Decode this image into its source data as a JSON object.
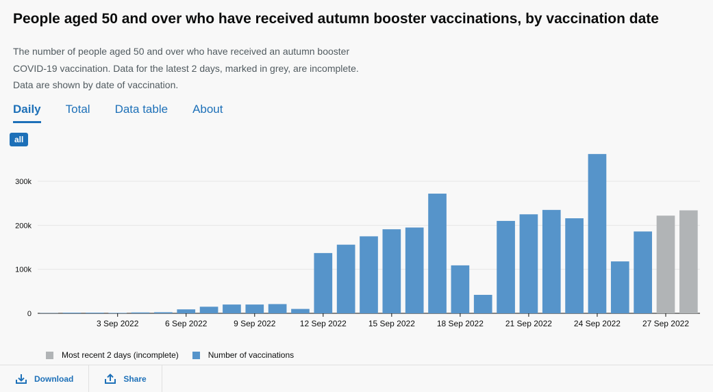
{
  "title": "People aged 50 and over who have received autumn booster vaccinations, by vaccination date",
  "description": [
    "The number of people aged 50 and over who have received an autumn booster",
    "COVID-19 vaccination. Data for the latest 2 days, marked in grey, are incomplete.",
    "Data are shown by date of vaccination."
  ],
  "tabs": [
    {
      "label": "Daily",
      "active": true
    },
    {
      "label": "Total",
      "active": false
    },
    {
      "label": "Data table",
      "active": false
    },
    {
      "label": "About",
      "active": false
    }
  ],
  "filter_label": "all",
  "footer": {
    "download_label": "Download",
    "share_label": "Share"
  },
  "colors": {
    "complete": "#5694ca",
    "incomplete": "#b1b4b6",
    "accent": "#1d70b8"
  },
  "chart_data": {
    "type": "bar",
    "title": "",
    "xlabel": "",
    "ylabel": "",
    "ylim": [
      0,
      370000
    ],
    "yticks": [
      {
        "value": 0,
        "label": "0"
      },
      {
        "value": 100000,
        "label": "100k"
      },
      {
        "value": 200000,
        "label": "200k"
      },
      {
        "value": 300000,
        "label": "300k"
      }
    ],
    "grid": true,
    "legend_position": "bottom-left",
    "x": [
      "31 Aug 2022",
      "1 Sep 2022",
      "2 Sep 2022",
      "3 Sep 2022",
      "4 Sep 2022",
      "5 Sep 2022",
      "6 Sep 2022",
      "7 Sep 2022",
      "8 Sep 2022",
      "9 Sep 2022",
      "10 Sep 2022",
      "11 Sep 2022",
      "12 Sep 2022",
      "13 Sep 2022",
      "14 Sep 2022",
      "15 Sep 2022",
      "16 Sep 2022",
      "17 Sep 2022",
      "18 Sep 2022",
      "19 Sep 2022",
      "20 Sep 2022",
      "21 Sep 2022",
      "22 Sep 2022",
      "23 Sep 2022",
      "24 Sep 2022",
      "25 Sep 2022",
      "26 Sep 2022",
      "27 Sep 2022",
      "28 Sep 2022"
    ],
    "xtick_labels": [
      "3 Sep 2022",
      "6 Sep 2022",
      "9 Sep 2022",
      "12 Sep 2022",
      "15 Sep 2022",
      "18 Sep 2022",
      "21 Sep 2022",
      "24 Sep 2022",
      "27 Sep 2022"
    ],
    "series": [
      {
        "name": "Number of vaccinations",
        "values": [
          500,
          1500,
          1500,
          1000,
          2000,
          2500,
          9000,
          15000,
          20000,
          20000,
          21000,
          10000,
          137000,
          156000,
          175000,
          191000,
          195000,
          272000,
          109000,
          42000,
          210000,
          225000,
          235000,
          216000,
          362000,
          118000,
          186000,
          null,
          null
        ]
      },
      {
        "name": "Most recent 2 days (incomplete)",
        "values": [
          null,
          null,
          null,
          null,
          null,
          null,
          null,
          null,
          null,
          null,
          null,
          null,
          null,
          null,
          null,
          null,
          null,
          null,
          null,
          null,
          null,
          null,
          null,
          null,
          null,
          null,
          null,
          222000,
          234000
        ]
      }
    ]
  }
}
